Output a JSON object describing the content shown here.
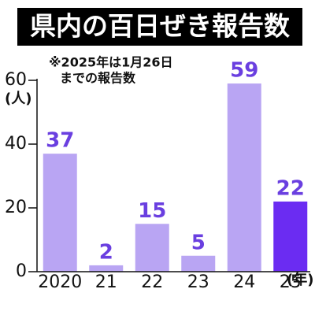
{
  "chart_data": {
    "type": "bar",
    "title": "県内の百日ぜき報告数",
    "note": [
      "※2025年は1月26日",
      "までの報告数"
    ],
    "y_unit": "(人)",
    "x_unit": "(年)",
    "categories": [
      "2020",
      "21",
      "22",
      "23",
      "24",
      "25"
    ],
    "values": [
      37,
      2,
      15,
      5,
      59,
      22
    ],
    "colors": [
      "#b9a5f3",
      "#b9a5f3",
      "#b9a5f3",
      "#b9a5f3",
      "#b9a5f3",
      "#6b2cf2"
    ],
    "label_color": "#6a3fe0",
    "ylim": [
      0,
      60
    ],
    "yticks": [
      0,
      20,
      40,
      60
    ],
    "grid": false
  }
}
